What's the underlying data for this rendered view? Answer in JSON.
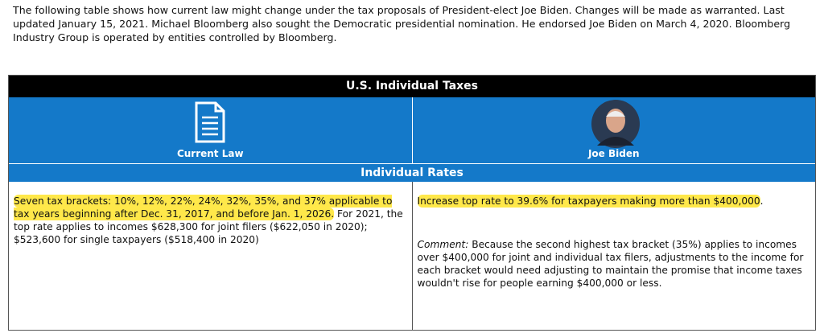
{
  "intro": "The following table shows how current law might change under the tax proposals of President-elect Joe Biden. Changes will be made as warranted. Last updated January 15, 2021. Michael Bloomberg also sought the Democratic presidential nomination. He endorsed Joe Biden on March 4, 2020. Bloomberg Industry Group is operated by entities controlled by Bloomberg.",
  "table": {
    "title": "U.S. Individual Taxes",
    "columns": [
      "Current Law",
      "Joe Biden"
    ],
    "section": "Individual Rates",
    "current_law": {
      "highlight": "Seven tax brackets: 10%, 12%, 22%, 24%, 32%, 35%, and 37% applicable to tax years beginning after Dec. 31, 2017, and before Jan. 1, 2026.",
      "text": " For 2021, the top rate applies to incomes $628,300 for joint filers ($622,050 in 2020); $523,600 for single taxpayers ($518,400 in 2020)"
    },
    "biden": {
      "highlight": "Increase top rate to 39.6% for taxpayers making more than $400,000",
      "text": ".",
      "comment_label": "Comment:",
      "comment": " Because the second highest tax bracket (35%) applies to incomes over $400,000 for joint and individual tax filers, adjustments to the income for each bracket would need adjusting to maintain the promise that income taxes wouldn't rise for people earning $400,000 or less."
    }
  }
}
